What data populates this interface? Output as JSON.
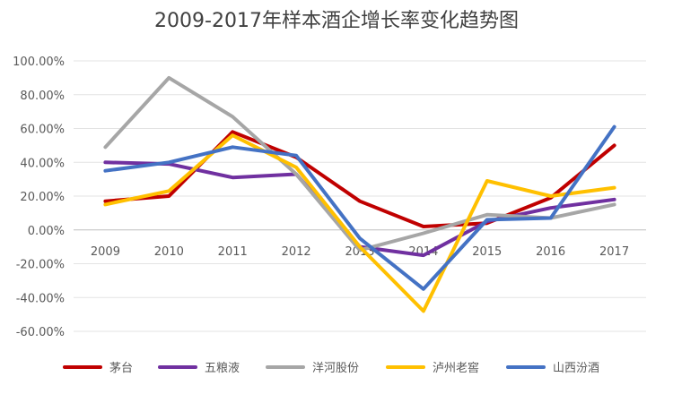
{
  "chart_data": {
    "type": "line",
    "title": "2009-2017年样本酒企增长率变化趋势图",
    "x": [
      "2009",
      "2010",
      "2011",
      "2012",
      "2013",
      "2014",
      "2015",
      "2016",
      "2017"
    ],
    "y_ticks": [
      "100.00%",
      "80.00%",
      "60.00%",
      "40.00%",
      "20.00%",
      "0.00%",
      "-20.00%",
      "-40.00%",
      "-60.00%"
    ],
    "ylim": [
      -60,
      100
    ],
    "y_unit": "%",
    "grid": true,
    "legend_position": "bottom",
    "series": [
      {
        "name": "茅台",
        "color": "#c00000",
        "values": [
          17,
          20,
          58,
          43,
          17,
          2,
          4,
          19,
          50
        ]
      },
      {
        "name": "五粮液",
        "color": "#7030a0",
        "values": [
          40,
          39,
          31,
          33,
          -10,
          -15,
          5,
          13,
          18
        ]
      },
      {
        "name": "洋河股份",
        "color": "#a6a6a6",
        "values": [
          49,
          90,
          67,
          33,
          -12,
          -2,
          9,
          7,
          15
        ]
      },
      {
        "name": "泸州老窖",
        "color": "#ffc000",
        "values": [
          15,
          23,
          56,
          37,
          -10,
          -48,
          29,
          20,
          25
        ]
      },
      {
        "name": "山西汾酒",
        "color": "#4472c4",
        "values": [
          35,
          40,
          49,
          44,
          -5,
          -35,
          6,
          7,
          61
        ]
      }
    ]
  }
}
